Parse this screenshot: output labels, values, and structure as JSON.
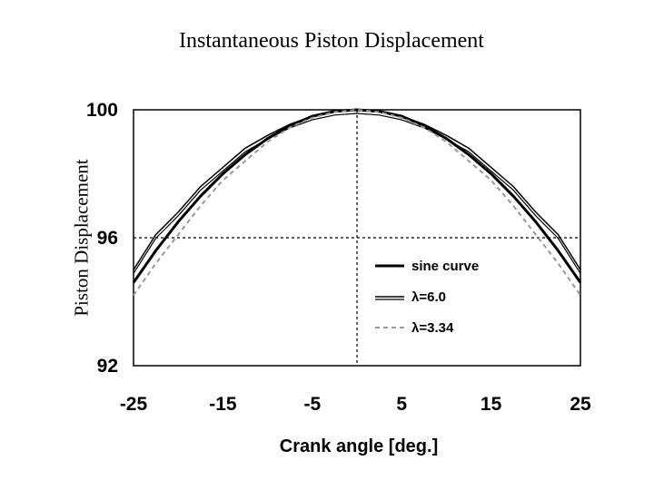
{
  "chart_data": {
    "type": "line",
    "title": "Instantaneous Piston Displacement",
    "ylabel": "Piston Displacement",
    "xlabel": "Crank angle [deg.]",
    "xlim": [
      -25,
      25
    ],
    "ylim": [
      92,
      100
    ],
    "x_ticks": [
      "-25",
      "-15",
      "-5",
      "5",
      "15",
      "25"
    ],
    "y_ticks": [
      "100",
      "96",
      "92"
    ],
    "reference_lines": {
      "x": 0,
      "y": 96
    },
    "grid": false,
    "legend_position": "lower-right",
    "x": [
      -25,
      -22.5,
      -20,
      -17.5,
      -15,
      -12.5,
      -10,
      -7.5,
      -5,
      -2.5,
      0,
      2.5,
      5,
      7.5,
      10,
      12.5,
      15,
      17.5,
      20,
      22.5,
      25
    ],
    "series": [
      {
        "name": "sine curve",
        "style": "solid-thick",
        "color": "#000000",
        "values": [
          94.6,
          95.6,
          96.5,
          97.3,
          98.0,
          98.6,
          99.1,
          99.5,
          99.8,
          99.95,
          100.0,
          99.95,
          99.8,
          99.5,
          99.1,
          98.6,
          98.0,
          97.3,
          96.5,
          95.6,
          94.6
        ]
      },
      {
        "name": "λ=6.0",
        "style": "double-thin",
        "color": "#000000",
        "values": [
          95.0,
          96.1,
          96.8,
          97.6,
          98.2,
          98.8,
          99.2,
          99.55,
          99.8,
          99.95,
          100.0,
          99.95,
          99.8,
          99.55,
          99.2,
          98.8,
          98.2,
          97.6,
          96.8,
          96.1,
          95.0
        ]
      },
      {
        "name": "λ=3.34",
        "style": "dashed",
        "color": "#999999",
        "values": [
          94.2,
          95.2,
          96.1,
          97.0,
          97.8,
          98.4,
          99.0,
          99.45,
          99.75,
          99.93,
          100.0,
          99.93,
          99.75,
          99.45,
          99.0,
          98.4,
          97.8,
          97.0,
          96.1,
          95.2,
          94.2
        ]
      }
    ]
  }
}
